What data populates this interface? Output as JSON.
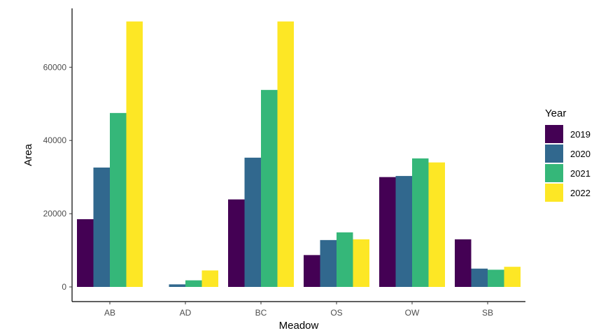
{
  "chart_data": {
    "type": "bar",
    "xlabel": "Meadow",
    "ylabel": "Area",
    "ylim": [
      0,
      75000
    ],
    "yticks": [
      0,
      20000,
      40000,
      60000
    ],
    "ytick_labels": [
      "0",
      "20000",
      "40000",
      "60000"
    ],
    "categories": [
      "AB",
      "AD",
      "BC",
      "OS",
      "OW",
      "SB"
    ],
    "legend": {
      "title": "Year",
      "position": "right"
    },
    "series": [
      {
        "name": "2019",
        "color": "#440154",
        "values": [
          18500,
          0,
          23900,
          8700,
          30000,
          13000
        ]
      },
      {
        "name": "2020",
        "color": "#31688E",
        "values": [
          32600,
          700,
          35300,
          12800,
          30300,
          5000
        ]
      },
      {
        "name": "2021",
        "color": "#35B779",
        "values": [
          47500,
          1800,
          53800,
          14900,
          35100,
          4700
        ]
      },
      {
        "name": "2022",
        "color": "#FDE725",
        "values": [
          72500,
          4500,
          72500,
          13000,
          34000,
          5500
        ]
      }
    ],
    "grid": false
  }
}
